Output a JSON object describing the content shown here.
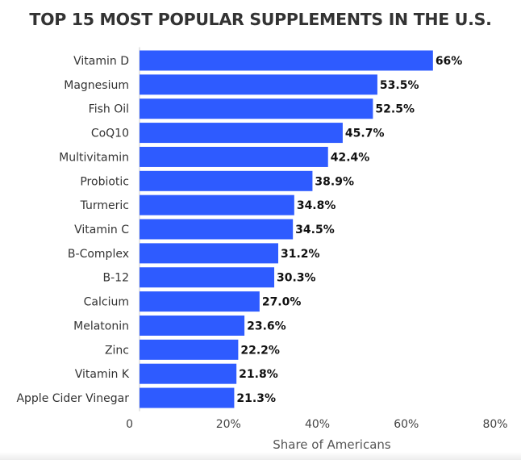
{
  "chart_data": {
    "type": "bar",
    "orientation": "horizontal",
    "title": "TOP 15 MOST POPULAR SUPPLEMENTS IN THE U.S.",
    "xlabel": "Share of Americans",
    "ylabel": "",
    "xlim": [
      0,
      80
    ],
    "xticks": [
      0,
      20,
      40,
      60,
      80
    ],
    "xtick_labels": [
      "0",
      "20%",
      "40%",
      "60%",
      "80%"
    ],
    "grid": false,
    "legend": "none",
    "bar_color": "#2e5bff",
    "categories": [
      "Vitamin D",
      "Magnesium",
      "Fish Oil",
      "CoQ10",
      "Multivitamin",
      "Probiotic",
      "Turmeric",
      "Vitamin C",
      "B-Complex",
      "B-12",
      "Calcium",
      "Melatonin",
      "Zinc",
      "Vitamin K",
      "Apple Cider Vinegar"
    ],
    "values": [
      66,
      53.5,
      52.5,
      45.7,
      42.4,
      38.9,
      34.8,
      34.5,
      31.2,
      30.3,
      27.0,
      23.6,
      22.2,
      21.8,
      21.3
    ],
    "value_labels": [
      "66%",
      "53.5%",
      "52.5%",
      "45.7%",
      "42.4%",
      "38.9%",
      "34.8%",
      "34.5%",
      "31.2%",
      "30.3%",
      "27.0%",
      "23.6%",
      "22.2%",
      "21.8%",
      "21.3%"
    ]
  }
}
